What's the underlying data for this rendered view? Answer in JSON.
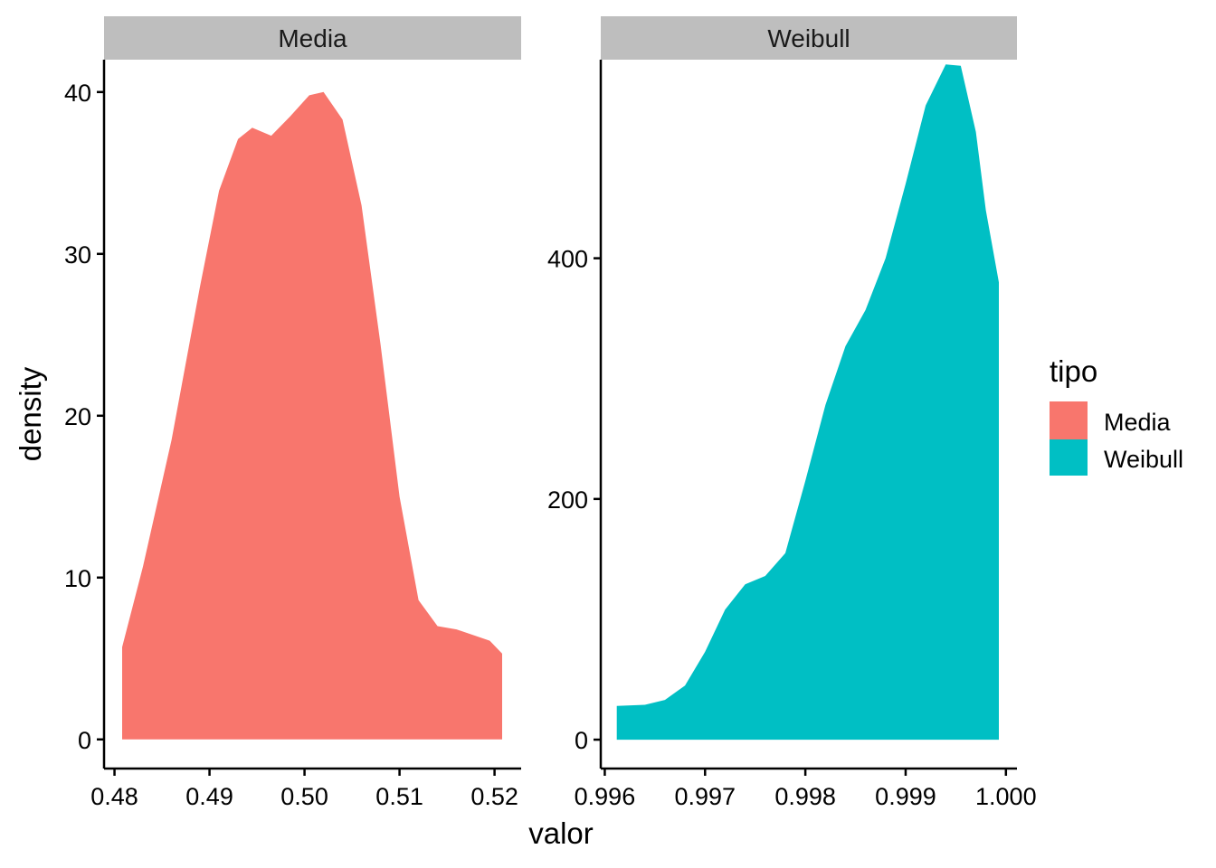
{
  "chart_data": {
    "type": "area",
    "subtype": "faceted density",
    "xlabel": "valor",
    "ylabel": "density",
    "legend": {
      "title": "tipo",
      "position": "right",
      "entries": [
        {
          "label": "Media",
          "color": "#F8766D"
        },
        {
          "label": "Weibull",
          "color": "#00BFC4"
        }
      ]
    },
    "grid": false,
    "facets": [
      {
        "label": "Media",
        "color": "#F8766D",
        "xlim": [
          0.4789,
          0.5228
        ],
        "ylim": [
          -1.8,
          42.0
        ],
        "xticks": [
          0.48,
          0.49,
          0.5,
          0.51,
          0.52
        ],
        "xtick_labels": [
          "0.48",
          "0.49",
          "0.50",
          "0.51",
          "0.52"
        ],
        "yticks": [
          0,
          10,
          20,
          30,
          40
        ],
        "ytick_labels": [
          "0",
          "10",
          "20",
          "30",
          "40"
        ],
        "x": [
          0.4808,
          0.483,
          0.486,
          0.489,
          0.491,
          0.493,
          0.4945,
          0.4965,
          0.4985,
          0.5005,
          0.502,
          0.504,
          0.506,
          0.508,
          0.51,
          0.512,
          0.514,
          0.516,
          0.518,
          0.5195,
          0.5208
        ],
        "y": [
          5.7,
          10.7,
          18.5,
          28.0,
          33.9,
          37.1,
          37.8,
          37.3,
          38.5,
          39.8,
          40.0,
          38.3,
          33.0,
          24.4,
          15.0,
          8.6,
          7.0,
          6.8,
          6.4,
          6.1,
          5.3
        ]
      },
      {
        "label": "Weibull",
        "color": "#00BFC4",
        "xlim": [
          0.99596,
          1.00011
        ],
        "ylim": [
          -24,
          565
        ],
        "xticks": [
          0.996,
          0.997,
          0.998,
          0.999,
          1.0
        ],
        "xtick_labels": [
          "0.996",
          "0.997",
          "0.998",
          "0.999",
          "1.000"
        ],
        "yticks": [
          0,
          200,
          400
        ],
        "ytick_labels": [
          "0",
          "200",
          "400"
        ],
        "x": [
          0.99612,
          0.9964,
          0.9966,
          0.9968,
          0.997,
          0.9972,
          0.9974,
          0.9976,
          0.9978,
          0.998,
          0.9982,
          0.9984,
          0.9986,
          0.9988,
          0.999,
          0.9992,
          0.9994,
          0.99955,
          0.9997,
          0.9998,
          0.99993
        ],
        "y": [
          28,
          29,
          33,
          45,
          73,
          108,
          129,
          136,
          155,
          215,
          278,
          327,
          357,
          400,
          462,
          527,
          561,
          560,
          505,
          440,
          380
        ]
      }
    ]
  }
}
